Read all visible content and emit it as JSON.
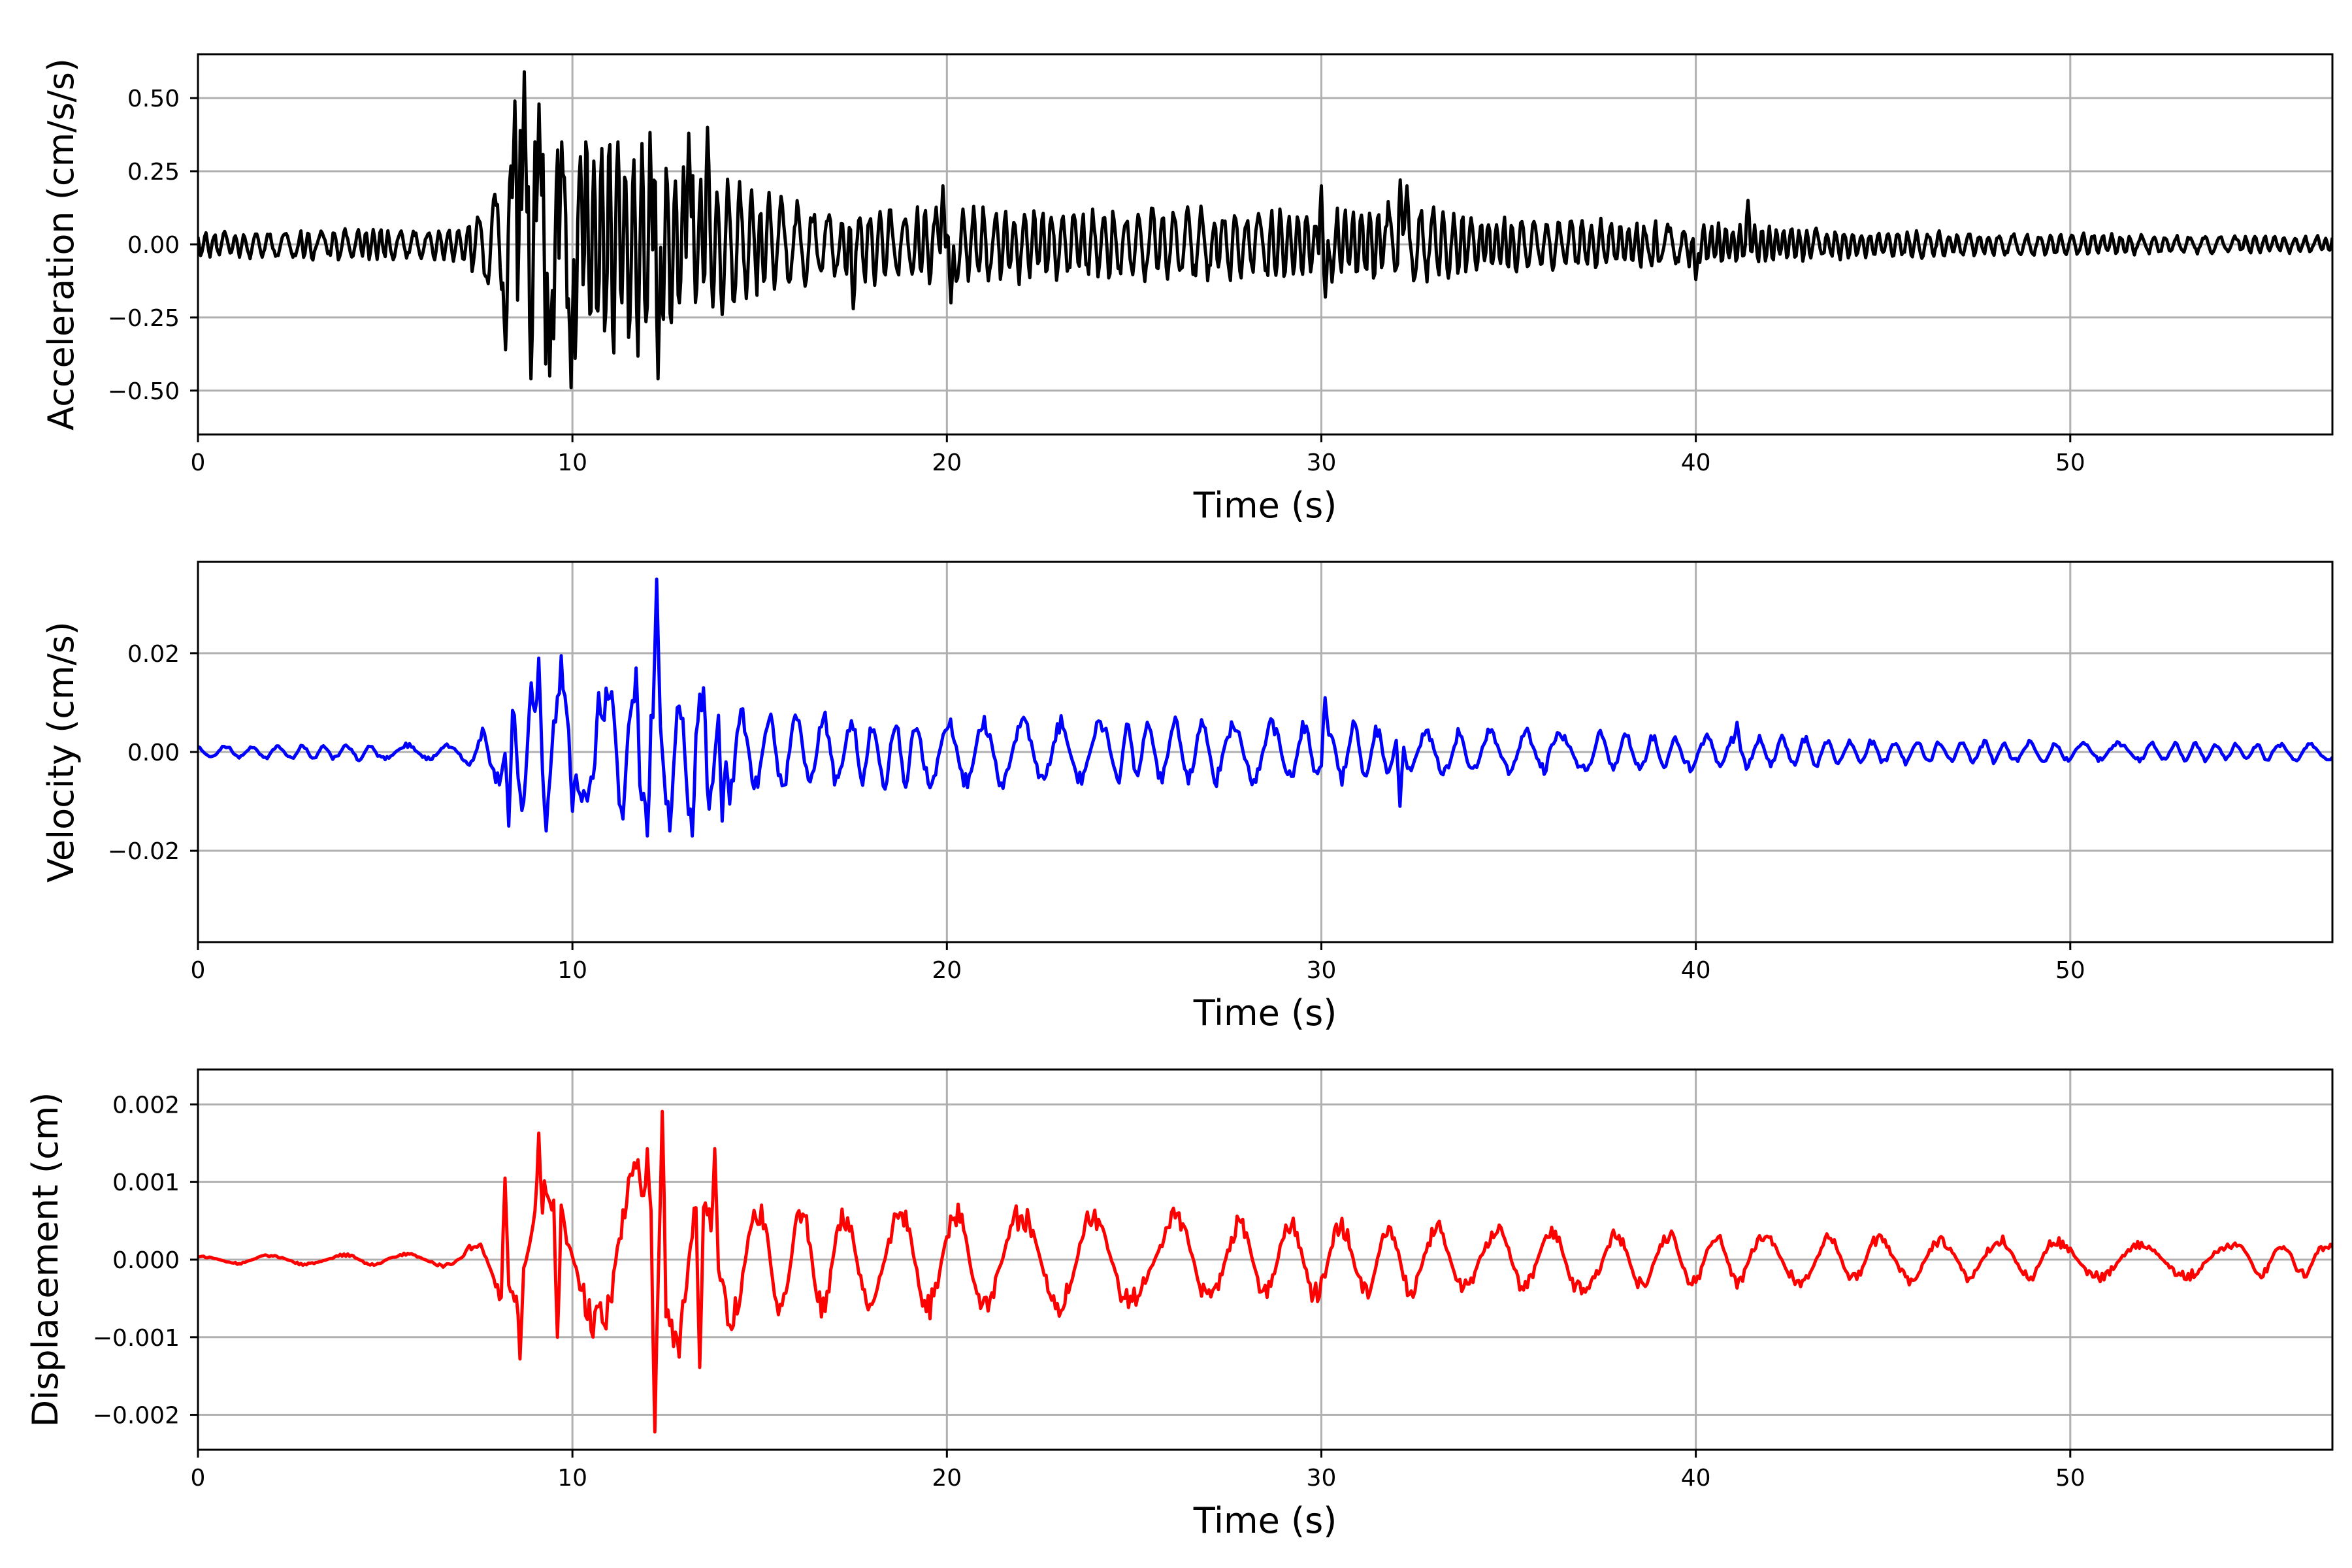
{
  "chart_data": [
    {
      "type": "line",
      "name": "acceleration-panel",
      "xlabel": "Time (s)",
      "ylabel": "Acceleration (cm/s/s)",
      "xlim": [
        0,
        57
      ],
      "ylim": [
        -0.65,
        0.65
      ],
      "xticks": [
        0,
        10,
        20,
        30,
        40,
        50
      ],
      "yticks": [
        0.5,
        0.25,
        0.0,
        -0.25,
        -0.5
      ],
      "ytick_labels": [
        "0.50",
        "0.25",
        "0.00",
        "−0.25",
        "−0.50"
      ],
      "grid": true,
      "color": "#000000",
      "envelope": [
        [
          0,
          0.05
        ],
        [
          7,
          0.06
        ],
        [
          7.8,
          0.2
        ],
        [
          8.5,
          0.45
        ],
        [
          10,
          0.45
        ],
        [
          12,
          0.4
        ],
        [
          13.5,
          0.3
        ],
        [
          16,
          0.15
        ],
        [
          20,
          0.14
        ],
        [
          30,
          0.13
        ],
        [
          32,
          0.15
        ],
        [
          35,
          0.1
        ],
        [
          40,
          0.08
        ],
        [
          45,
          0.05
        ],
        [
          50,
          0.04
        ],
        [
          57,
          0.03
        ]
      ],
      "peaks": [
        [
          8.2,
          -0.36
        ],
        [
          8.45,
          0.49
        ],
        [
          8.7,
          0.59
        ],
        [
          8.9,
          -0.46
        ],
        [
          9.1,
          0.48
        ],
        [
          9.4,
          -0.45
        ],
        [
          9.7,
          0.35
        ],
        [
          9.98,
          -0.49
        ],
        [
          10.2,
          0.3
        ],
        [
          11.2,
          0.35
        ],
        [
          12.2,
          0.44
        ],
        [
          12.3,
          -0.46
        ],
        [
          13.1,
          0.38
        ],
        [
          13.6,
          0.4
        ],
        [
          14,
          -0.24
        ],
        [
          17.5,
          -0.22
        ],
        [
          19.9,
          0.2
        ],
        [
          20.1,
          -0.2
        ],
        [
          30,
          0.2
        ],
        [
          30.1,
          -0.18
        ],
        [
          32.1,
          0.22
        ],
        [
          32.3,
          0.2
        ],
        [
          40,
          -0.12
        ],
        [
          41.4,
          0.15
        ]
      ],
      "freq_hz": 3.5,
      "seed": 11
    },
    {
      "type": "line",
      "name": "velocity-panel",
      "xlabel": "Time (s)",
      "ylabel": "Velocity (cm/s)",
      "xlim": [
        0,
        57
      ],
      "ylim": [
        -0.0385,
        0.0385
      ],
      "xticks": [
        0,
        10,
        20,
        30,
        40,
        50
      ],
      "yticks": [
        0.02,
        0.0,
        -0.02
      ],
      "ytick_labels": [
        "0.02",
        "0.00",
        "−0.02"
      ],
      "grid": true,
      "color": "#0000ff",
      "envelope": [
        [
          0,
          0.0015
        ],
        [
          7,
          0.002
        ],
        [
          7.8,
          0.006
        ],
        [
          8.5,
          0.015
        ],
        [
          10,
          0.014
        ],
        [
          12,
          0.016
        ],
        [
          13.5,
          0.013
        ],
        [
          15,
          0.009
        ],
        [
          20,
          0.008
        ],
        [
          30,
          0.007
        ],
        [
          35,
          0.005
        ],
        [
          40,
          0.004
        ],
        [
          45,
          0.003
        ],
        [
          50,
          0.0022
        ],
        [
          57,
          0.002
        ]
      ],
      "peaks": [
        [
          8.3,
          -0.015
        ],
        [
          8.9,
          0.014
        ],
        [
          9.1,
          0.019
        ],
        [
          9.3,
          -0.016
        ],
        [
          9.7,
          0.0195
        ],
        [
          10.0,
          -0.012
        ],
        [
          10.7,
          0.012
        ],
        [
          11.7,
          0.017
        ],
        [
          12.0,
          -0.017
        ],
        [
          12.25,
          0.035
        ],
        [
          12.6,
          -0.016
        ],
        [
          13.2,
          -0.017
        ],
        [
          13.5,
          0.013
        ],
        [
          14.0,
          -0.014
        ],
        [
          30.1,
          0.011
        ],
        [
          32.1,
          -0.011
        ],
        [
          41.1,
          0.006
        ]
      ],
      "freq_hz": 1.3,
      "seed": 23
    },
    {
      "type": "line",
      "name": "displacement-panel",
      "xlabel": "Time (s)",
      "ylabel": "Displacement (cm)",
      "xlim": [
        0,
        57
      ],
      "ylim": [
        -0.00245,
        0.00245
      ],
      "xticks": [
        0,
        10,
        20,
        30,
        40,
        50
      ],
      "yticks": [
        0.002,
        0.001,
        0.0,
        -0.001,
        -0.002
      ],
      "ytick_labels": [
        "0.002",
        "0.001",
        "0.000",
        "−0.001",
        "−0.002"
      ],
      "grid": true,
      "color": "#ff0000",
      "envelope": [
        [
          0,
          6e-05
        ],
        [
          7,
          0.0001
        ],
        [
          8,
          0.0005
        ],
        [
          9,
          0.0012
        ],
        [
          10,
          0.0009
        ],
        [
          12,
          0.0015
        ],
        [
          13.5,
          0.0012
        ],
        [
          15,
          0.0008
        ],
        [
          20,
          0.0008
        ],
        [
          25,
          0.0007
        ],
        [
          30,
          0.0006
        ],
        [
          35,
          0.0005
        ],
        [
          40,
          0.0004
        ],
        [
          45,
          0.00035
        ],
        [
          50,
          0.0003
        ],
        [
          57,
          0.00025
        ]
      ],
      "peaks": [
        [
          8.2,
          0.00105
        ],
        [
          8.6,
          -0.00128
        ],
        [
          9.1,
          0.00163
        ],
        [
          9.6,
          -0.001
        ],
        [
          12.0,
          0.00143
        ],
        [
          12.2,
          -0.00222
        ],
        [
          12.4,
          0.00191
        ],
        [
          12.7,
          -0.00112
        ],
        [
          13.4,
          -0.00139
        ],
        [
          13.8,
          0.00143
        ]
      ],
      "freq_hz": 0.6,
      "seed": 37
    }
  ]
}
